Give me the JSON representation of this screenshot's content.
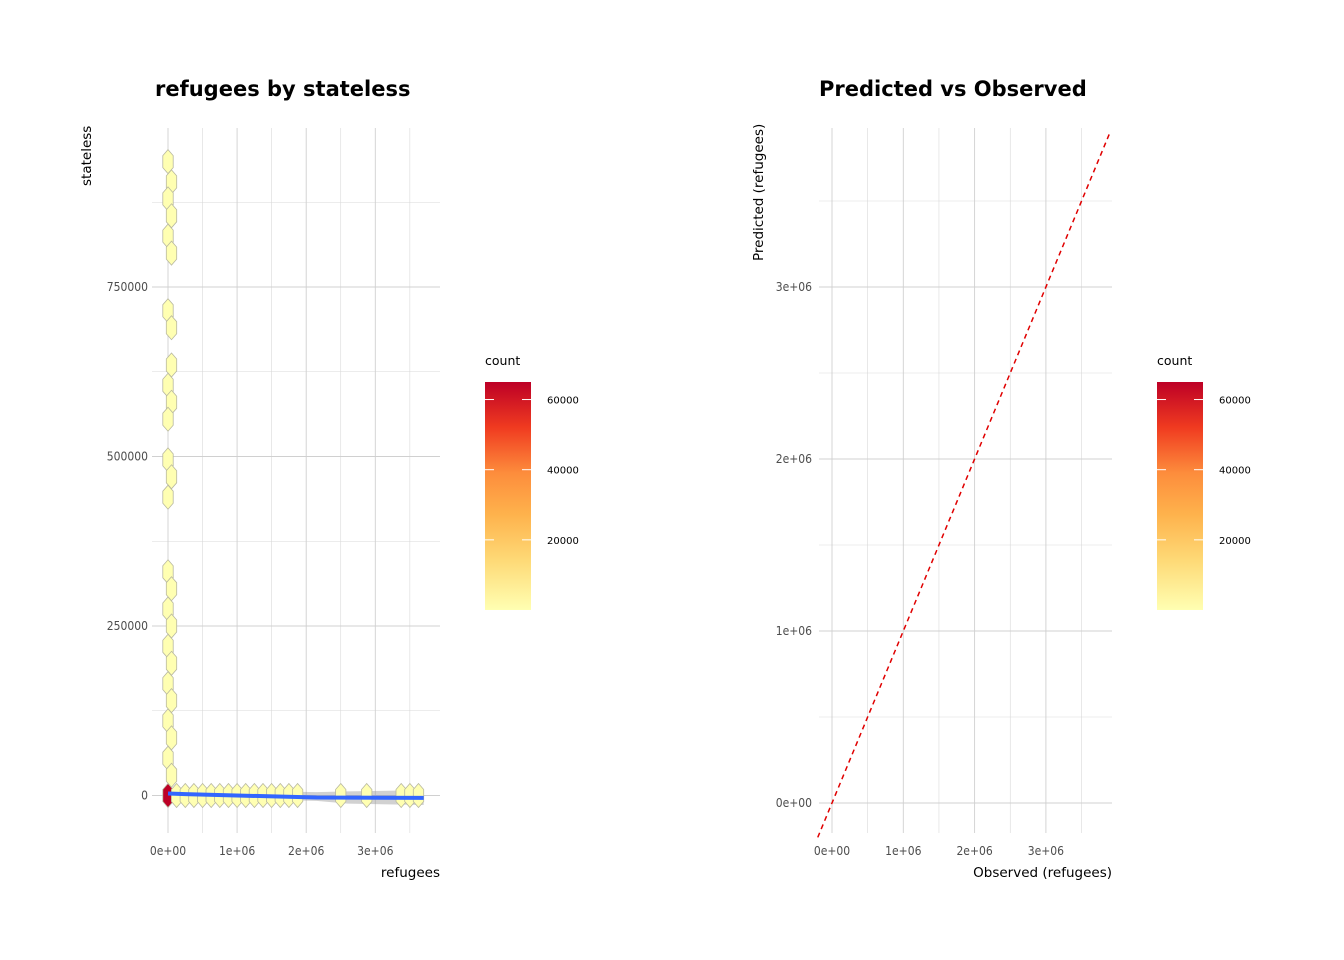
{
  "chart_data": [
    {
      "type": "hexbin",
      "title": "refugees by stateless",
      "xlabel": "refugees",
      "ylabel": "stateless",
      "xlim": [
        0,
        3700000
      ],
      "ylim": [
        -50000,
        950000
      ],
      "x_ticks": [
        {
          "value": 0,
          "label": "0e+00"
        },
        {
          "value": 1000000,
          "label": "1e+06"
        },
        {
          "value": 2000000,
          "label": "2e+06"
        },
        {
          "value": 3000000,
          "label": "3e+06"
        }
      ],
      "y_ticks": [
        {
          "value": 0,
          "label": "0"
        },
        {
          "value": 250000,
          "label": "250000"
        },
        {
          "value": 500000,
          "label": "500000"
        },
        {
          "value": 750000,
          "label": "750000"
        }
      ],
      "legend": {
        "title": "count",
        "position": "right",
        "breaks": [
          {
            "value": 20000,
            "label": "20000"
          },
          {
            "value": 40000,
            "label": "40000"
          },
          {
            "value": 60000,
            "label": "60000"
          }
        ],
        "limits": [
          1,
          65000
        ],
        "colors": [
          "#ffffb2",
          "#fed976",
          "#feb24c",
          "#fd8d3c",
          "#f03b20",
          "#bd0026"
        ]
      },
      "bins": [
        {
          "x": 0,
          "y": 0,
          "count": 65000
        },
        {
          "x": 0,
          "y": 935000,
          "count": 1
        },
        {
          "x": 50000,
          "y": 905000,
          "count": 1
        },
        {
          "x": 0,
          "y": 880000,
          "count": 1
        },
        {
          "x": 50000,
          "y": 855000,
          "count": 1
        },
        {
          "x": 0,
          "y": 825000,
          "count": 1
        },
        {
          "x": 50000,
          "y": 800000,
          "count": 1
        },
        {
          "x": 0,
          "y": 715000,
          "count": 1
        },
        {
          "x": 50000,
          "y": 690000,
          "count": 1
        },
        {
          "x": 50000,
          "y": 635000,
          "count": 1
        },
        {
          "x": 0,
          "y": 605000,
          "count": 1
        },
        {
          "x": 50000,
          "y": 580000,
          "count": 1
        },
        {
          "x": 0,
          "y": 555000,
          "count": 1
        },
        {
          "x": 0,
          "y": 495000,
          "count": 1
        },
        {
          "x": 50000,
          "y": 470000,
          "count": 1
        },
        {
          "x": 0,
          "y": 440000,
          "count": 1
        },
        {
          "x": 0,
          "y": 330000,
          "count": 1
        },
        {
          "x": 50000,
          "y": 305000,
          "count": 1
        },
        {
          "x": 0,
          "y": 275000,
          "count": 1
        },
        {
          "x": 50000,
          "y": 250000,
          "count": 1
        },
        {
          "x": 0,
          "y": 220000,
          "count": 1
        },
        {
          "x": 50000,
          "y": 195000,
          "count": 1
        },
        {
          "x": 0,
          "y": 165000,
          "count": 1
        },
        {
          "x": 50000,
          "y": 140000,
          "count": 1
        },
        {
          "x": 0,
          "y": 110000,
          "count": 1
        },
        {
          "x": 50000,
          "y": 85000,
          "count": 1
        },
        {
          "x": 0,
          "y": 55000,
          "count": 1
        },
        {
          "x": 50000,
          "y": 30000,
          "count": 2
        },
        {
          "x": 125000,
          "y": 0,
          "count": 3
        },
        {
          "x": 250000,
          "y": 0,
          "count": 2
        },
        {
          "x": 375000,
          "y": 0,
          "count": 2
        },
        {
          "x": 500000,
          "y": 0,
          "count": 1
        },
        {
          "x": 625000,
          "y": 0,
          "count": 1
        },
        {
          "x": 750000,
          "y": 0,
          "count": 1
        },
        {
          "x": 875000,
          "y": 0,
          "count": 1
        },
        {
          "x": 1000000,
          "y": 0,
          "count": 1
        },
        {
          "x": 1125000,
          "y": 0,
          "count": 1
        },
        {
          "x": 1250000,
          "y": 0,
          "count": 1
        },
        {
          "x": 1375000,
          "y": 0,
          "count": 1
        },
        {
          "x": 1500000,
          "y": 0,
          "count": 1
        },
        {
          "x": 1625000,
          "y": 0,
          "count": 1
        },
        {
          "x": 1750000,
          "y": 0,
          "count": 1
        },
        {
          "x": 1875000,
          "y": 0,
          "count": 1
        },
        {
          "x": 2500000,
          "y": 0,
          "count": 1
        },
        {
          "x": 2875000,
          "y": 0,
          "count": 1
        },
        {
          "x": 3375000,
          "y": 0,
          "count": 1
        },
        {
          "x": 3500000,
          "y": 0,
          "count": 1
        },
        {
          "x": 3625000,
          "y": 0,
          "count": 1
        }
      ],
      "smooth": {
        "color": "#3366ff",
        "x": [
          0,
          250000,
          2150000,
          3700000
        ],
        "y": [
          3000,
          2000,
          -3000,
          -3500
        ],
        "se_band": {
          "x": [
            0,
            2150000,
            2600000,
            3700000
          ],
          "upper": [
            9000,
            5000,
            6000,
            8000
          ],
          "lower": [
            -3000,
            -8000,
            -12000,
            -14000
          ]
        }
      }
    },
    {
      "type": "line",
      "title": "Predicted vs Observed",
      "xlabel": "Observed (refugees)",
      "ylabel": "Predicted (refugees)",
      "xlim": [
        -200000,
        3900000
      ],
      "ylim": [
        -200000,
        3900000
      ],
      "x_ticks": [
        {
          "value": 0,
          "label": "0e+00"
        },
        {
          "value": 1000000,
          "label": "1e+06"
        },
        {
          "value": 2000000,
          "label": "2e+06"
        },
        {
          "value": 3000000,
          "label": "3e+06"
        }
      ],
      "y_ticks": [
        {
          "value": 0,
          "label": "0e+00"
        },
        {
          "value": 1000000,
          "label": "1e+06"
        },
        {
          "value": 2000000,
          "label": "2e+06"
        },
        {
          "value": 3000000,
          "label": "3e+06"
        }
      ],
      "reference_line": {
        "slope": 1,
        "intercept": 0,
        "color": "#e00000",
        "style": "dashed"
      },
      "legend": {
        "title": "count",
        "position": "right",
        "breaks": [
          {
            "value": 20000,
            "label": "20000"
          },
          {
            "value": 40000,
            "label": "40000"
          },
          {
            "value": 60000,
            "label": "60000"
          }
        ],
        "limits": [
          1,
          65000
        ],
        "colors": [
          "#ffffb2",
          "#fed976",
          "#feb24c",
          "#fd8d3c",
          "#f03b20",
          "#bd0026"
        ]
      }
    }
  ]
}
